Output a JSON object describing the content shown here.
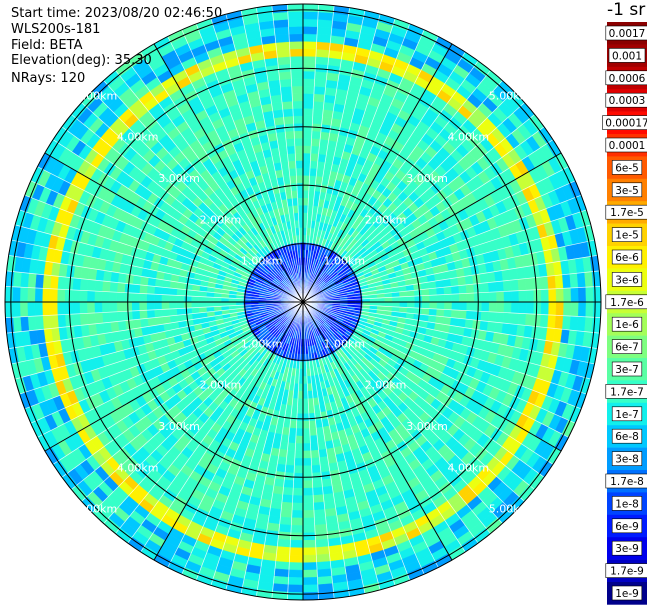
{
  "header": {
    "start_time": "Start time: 2023/08/20 02:46:50",
    "instrument": "WLS200s-181",
    "field": "Field: BETA",
    "elevation": "Elevation(deg): 35.30",
    "nrays": "NRays: 120"
  },
  "colorbar": {
    "title": "-1 sr",
    "labels": [
      "0.0017",
      "0.001",
      "0.0006",
      "0.0003",
      "0.00017",
      "0.0001",
      "6e-5",
      "3e-5",
      "1.7e-5",
      "1e-5",
      "6e-6",
      "3e-6",
      "1.7e-6",
      "1e-6",
      "6e-7",
      "3e-7",
      "1.7e-7",
      "1e-7",
      "6e-8",
      "3e-8",
      "1.7e-8",
      "1e-8",
      "6e-9",
      "3e-9",
      "1.7e-9",
      "1e-9"
    ],
    "colors": [
      "#8b0000",
      "#a10000",
      "#c00000",
      "#e00000",
      "#ff0a00",
      "#ff3000",
      "#ff5a00",
      "#ff8000",
      "#ffaa00",
      "#ffd200",
      "#fff000",
      "#ecff10",
      "#c8ff36",
      "#a4ff5a",
      "#7eff80",
      "#5affa4",
      "#36ffc8",
      "#12f0ec",
      "#00c8ff",
      "#009cff",
      "#0070ff",
      "#0044ff",
      "#001cff",
      "#0000ec",
      "#0000c4",
      "#00008b"
    ]
  },
  "chart_data": {
    "type": "heatmap",
    "projection": "polar PPI",
    "field": "BETA",
    "nrays": 120,
    "range_rings_km": [
      1.0,
      2.0,
      3.0,
      4.0,
      5.0
    ],
    "ring_labels": [
      "1.00km",
      "2.00km",
      "3.00km",
      "4.00km",
      "5.00km"
    ],
    "max_range_km": 5.1,
    "spokes_deg": [
      0,
      30,
      60,
      90,
      120,
      150,
      180,
      210,
      240,
      270,
      300,
      330
    ],
    "background_level": "1.7e-7",
    "inner_level": "1e-8",
    "enhanced_band_km": [
      4.2,
      4.5
    ],
    "enhanced_band_level": "1e-5"
  }
}
